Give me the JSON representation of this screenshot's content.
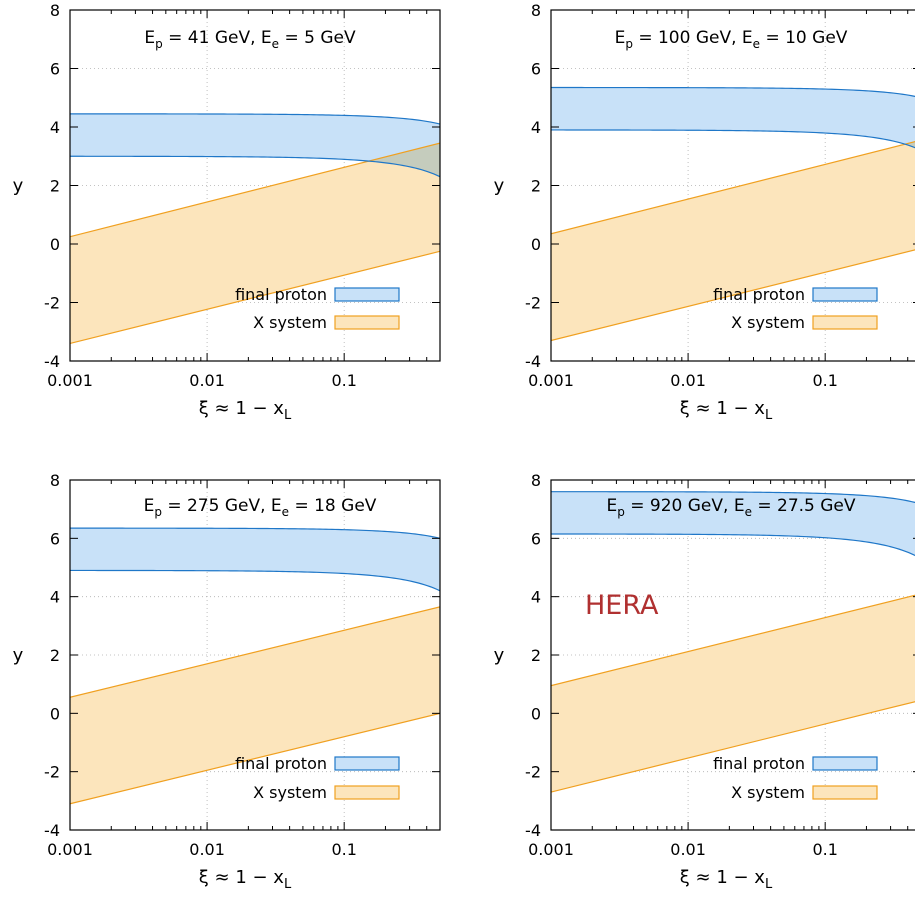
{
  "chart_data": [
    {
      "type": "area",
      "title": {
        "p_label": "E",
        "p_sub": "p",
        "p_value": " = 41 GeV,  ",
        "e_label": "E",
        "e_sub": "e",
        "e_value": " = 5 GeV"
      },
      "annotation": "",
      "xlabel": {
        "main": "ξ ≈ 1 − x",
        "sub": "L"
      },
      "ylabel": "y",
      "xscale": "log",
      "xlim": [
        0.001,
        0.5
      ],
      "ylim": [
        -4,
        8
      ],
      "xticks": [
        {
          "v": 0.001,
          "label": "0.001"
        },
        {
          "v": 0.01,
          "label": "0.01"
        },
        {
          "v": 0.1,
          "label": "0.1"
        }
      ],
      "yticks": [
        {
          "v": -4,
          "label": "-4"
        },
        {
          "v": -2,
          "label": "-2"
        },
        {
          "v": 0,
          "label": "0"
        },
        {
          "v": 2,
          "label": "2"
        },
        {
          "v": 4,
          "label": "4"
        },
        {
          "v": 6,
          "label": "6"
        },
        {
          "v": 8,
          "label": "8"
        }
      ],
      "grid": true,
      "legend_position": "bottom-right",
      "series": [
        {
          "name": "final proton",
          "kind": "proton",
          "y_top": 4.45,
          "y_bot": 3.0,
          "ymin_edge": 2.3,
          "xmax": 0.5
        },
        {
          "name": "X system",
          "kind": "xsys",
          "upper": [
            [
              0.001,
              0.25
            ],
            [
              0.5,
              3.45
            ]
          ],
          "lower": [
            [
              0.001,
              -3.4
            ],
            [
              0.5,
              -0.25
            ]
          ]
        }
      ]
    },
    {
      "type": "area",
      "title": {
        "p_label": "E",
        "p_sub": "p",
        "p_value": " = 100 GeV,  ",
        "e_label": "E",
        "e_sub": "e",
        "e_value": " = 10 GeV"
      },
      "annotation": "",
      "xlabel": {
        "main": "ξ ≈ 1 − x",
        "sub": "L"
      },
      "ylabel": "y",
      "xscale": "log",
      "xlim": [
        0.001,
        0.5
      ],
      "ylim": [
        -4,
        8
      ],
      "xticks": [
        {
          "v": 0.001,
          "label": "0.001"
        },
        {
          "v": 0.01,
          "label": "0.01"
        },
        {
          "v": 0.1,
          "label": "0.1"
        }
      ],
      "yticks": [
        {
          "v": -4,
          "label": "-4"
        },
        {
          "v": -2,
          "label": "-2"
        },
        {
          "v": 0,
          "label": "0"
        },
        {
          "v": 2,
          "label": "2"
        },
        {
          "v": 4,
          "label": "4"
        },
        {
          "v": 6,
          "label": "6"
        },
        {
          "v": 8,
          "label": "8"
        }
      ],
      "grid": true,
      "legend_position": "bottom-right",
      "series": [
        {
          "name": "final proton",
          "kind": "proton",
          "y_top": 5.35,
          "y_bot": 3.9,
          "ymin_edge": 3.2,
          "xmax": 0.5
        },
        {
          "name": "X system",
          "kind": "xsys",
          "upper": [
            [
              0.001,
              0.35
            ],
            [
              0.5,
              3.55
            ]
          ],
          "lower": [
            [
              0.001,
              -3.3
            ],
            [
              0.5,
              -0.15
            ]
          ]
        }
      ]
    },
    {
      "type": "area",
      "title": {
        "p_label": "E",
        "p_sub": "p",
        "p_value": " = 275 GeV,  ",
        "e_label": "E",
        "e_sub": "e",
        "e_value": " = 18 GeV"
      },
      "annotation": "",
      "xlabel": {
        "main": "ξ ≈ 1 − x",
        "sub": "L"
      },
      "ylabel": "y",
      "xscale": "log",
      "xlim": [
        0.001,
        0.5
      ],
      "ylim": [
        -4,
        8
      ],
      "xticks": [
        {
          "v": 0.001,
          "label": "0.001"
        },
        {
          "v": 0.01,
          "label": "0.01"
        },
        {
          "v": 0.1,
          "label": "0.1"
        }
      ],
      "yticks": [
        {
          "v": -4,
          "label": "-4"
        },
        {
          "v": -2,
          "label": "-2"
        },
        {
          "v": 0,
          "label": "0"
        },
        {
          "v": 2,
          "label": "2"
        },
        {
          "v": 4,
          "label": "4"
        },
        {
          "v": 6,
          "label": "6"
        },
        {
          "v": 8,
          "label": "8"
        }
      ],
      "grid": true,
      "legend_position": "bottom-right",
      "series": [
        {
          "name": "final proton",
          "kind": "proton",
          "y_top": 6.35,
          "y_bot": 4.9,
          "ymin_edge": 4.2,
          "xmax": 0.5
        },
        {
          "name": "X system",
          "kind": "xsys",
          "upper": [
            [
              0.001,
              0.55
            ],
            [
              0.5,
              3.65
            ]
          ],
          "lower": [
            [
              0.001,
              -3.1
            ],
            [
              0.5,
              0.0
            ]
          ]
        }
      ]
    },
    {
      "type": "area",
      "title": {
        "p_label": "E",
        "p_sub": "p",
        "p_value": " = 920 GeV,  ",
        "e_label": "E",
        "e_sub": "e",
        "e_value": " = 27.5 GeV"
      },
      "annotation": "HERA",
      "xlabel": {
        "main": "ξ ≈ 1 − x",
        "sub": "L"
      },
      "ylabel": "y",
      "xscale": "log",
      "xlim": [
        0.001,
        0.5
      ],
      "ylim": [
        -4,
        8
      ],
      "xticks": [
        {
          "v": 0.001,
          "label": "0.001"
        },
        {
          "v": 0.01,
          "label": "0.01"
        },
        {
          "v": 0.1,
          "label": "0.1"
        }
      ],
      "yticks": [
        {
          "v": -4,
          "label": "-4"
        },
        {
          "v": -2,
          "label": "-2"
        },
        {
          "v": 0,
          "label": "0"
        },
        {
          "v": 2,
          "label": "2"
        },
        {
          "v": 4,
          "label": "4"
        },
        {
          "v": 6,
          "label": "6"
        },
        {
          "v": 8,
          "label": "8"
        }
      ],
      "grid": true,
      "legend_position": "bottom-right",
      "series": [
        {
          "name": "final proton",
          "kind": "proton",
          "y_top": 7.6,
          "y_bot": 6.15,
          "ymin_edge": 5.3,
          "xmax": 0.5
        },
        {
          "name": "X system",
          "kind": "xsys",
          "upper": [
            [
              0.001,
              0.95
            ],
            [
              0.5,
              4.1
            ]
          ],
          "lower": [
            [
              0.001,
              -2.7
            ],
            [
              0.5,
              0.45
            ]
          ]
        }
      ]
    }
  ],
  "colors": {
    "proton_fill": "#c8e1f8",
    "proton_line": "#1f77c8",
    "xsys_fill": "#fce5bc",
    "xsys_line": "#f0a020",
    "overlap_fill": "#c5ccbd",
    "hera": "#b03030"
  }
}
